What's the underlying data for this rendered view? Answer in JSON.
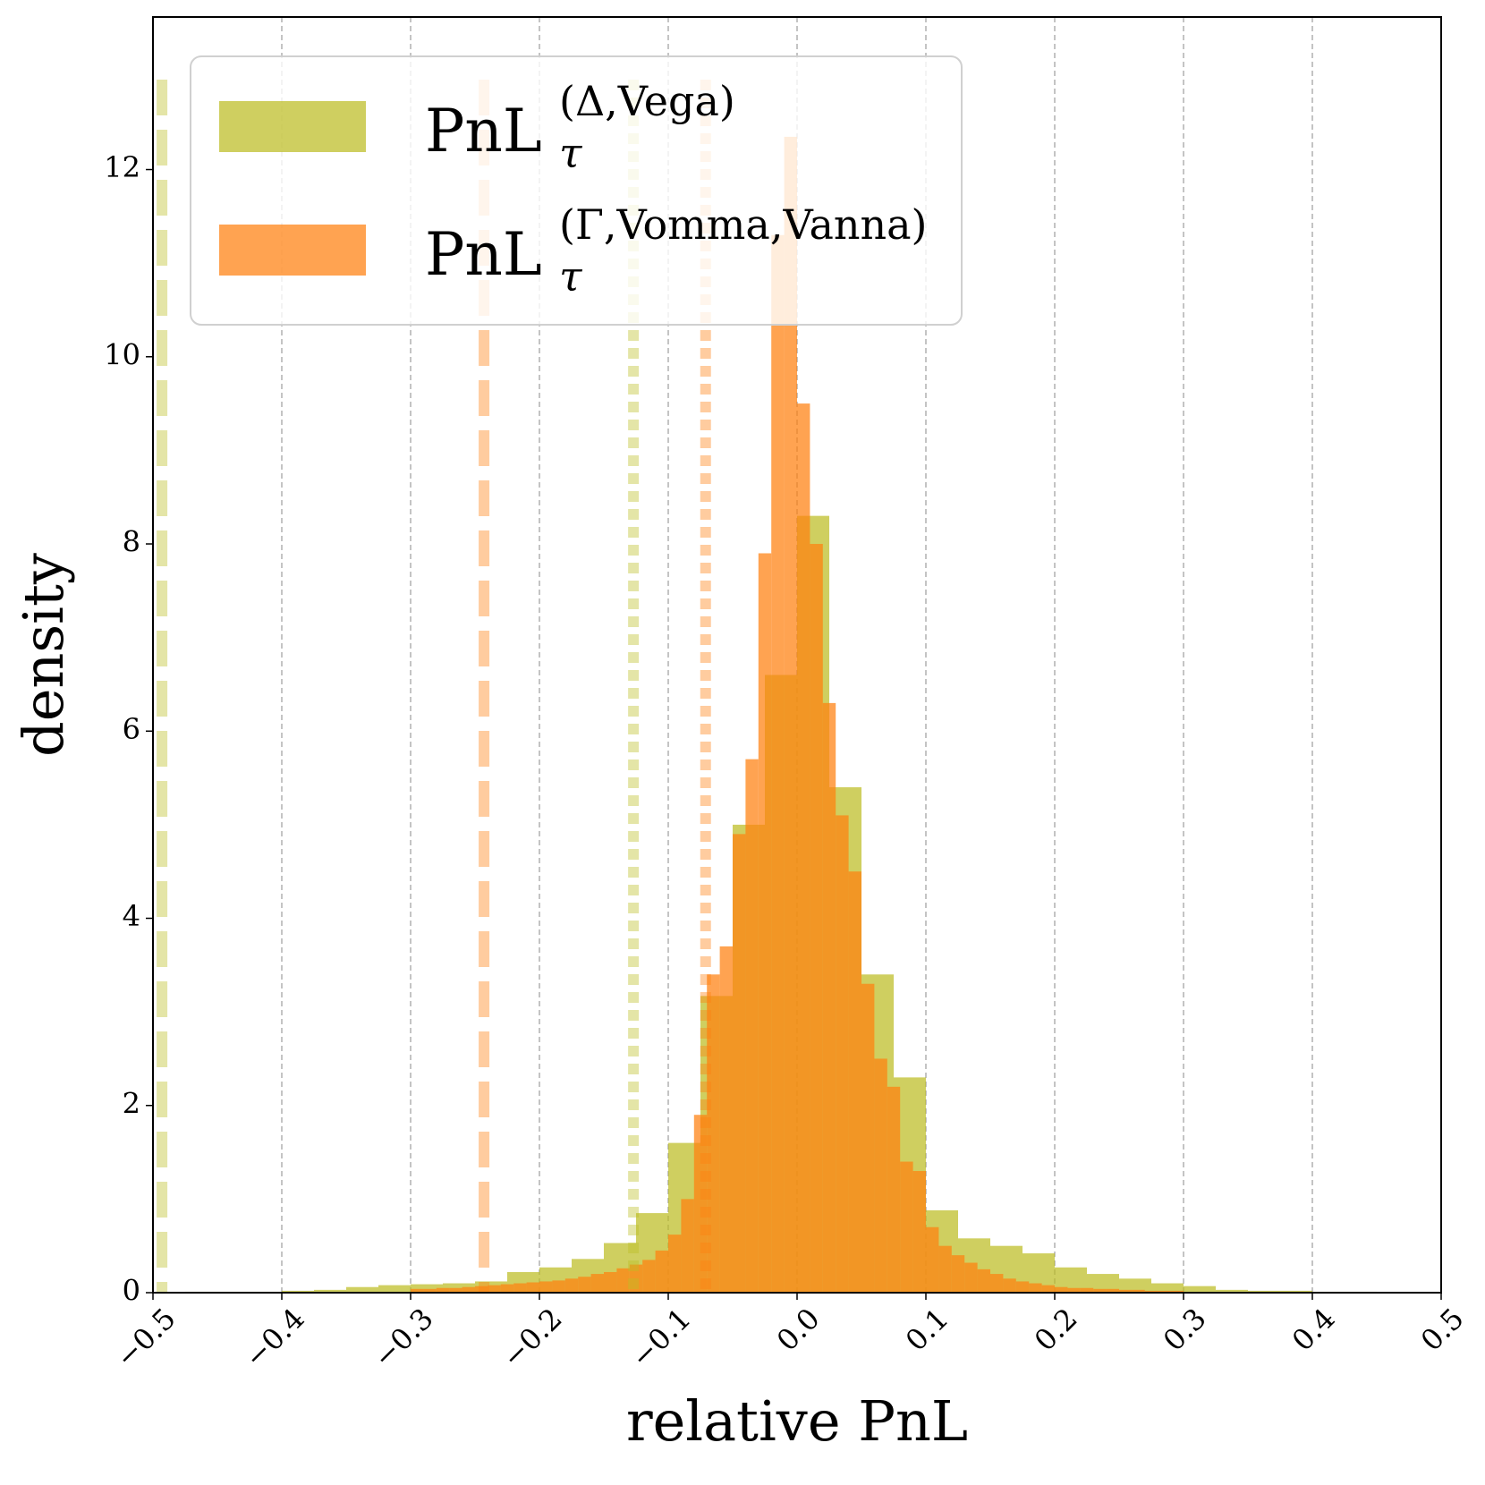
{
  "chart_data": {
    "type": "histogram",
    "xlabel": "relative PnL",
    "ylabel": "density",
    "xlim": [
      -0.5,
      0.5
    ],
    "ylim": [
      0,
      13.63
    ],
    "xticks": [
      {
        "value": -0.5,
        "label": "−0.5"
      },
      {
        "value": -0.4,
        "label": "−0.4"
      },
      {
        "value": -0.3,
        "label": "−0.3"
      },
      {
        "value": -0.2,
        "label": "−0.2"
      },
      {
        "value": -0.1,
        "label": "−0.1"
      },
      {
        "value": 0.0,
        "label": "0.0"
      },
      {
        "value": 0.1,
        "label": "0.1"
      },
      {
        "value": 0.2,
        "label": "0.2"
      },
      {
        "value": 0.3,
        "label": "0.3"
      },
      {
        "value": 0.4,
        "label": "0.4"
      },
      {
        "value": 0.5,
        "label": "0.5"
      }
    ],
    "yticks": [
      0,
      2,
      4,
      6,
      8,
      10,
      12
    ],
    "grid": "x",
    "legend": "upper left",
    "series": [
      {
        "name": "PnL",
        "name_sub": "τ",
        "name_sup": "(Δ,Vega)",
        "color": "#bcbd22",
        "bins": [
          -0.5,
          -0.475,
          -0.45,
          -0.425,
          -0.4,
          -0.375,
          -0.35,
          -0.325,
          -0.3,
          -0.275,
          -0.25,
          -0.225,
          -0.2,
          -0.175,
          -0.15,
          -0.125,
          -0.1,
          -0.075,
          -0.05,
          -0.025,
          0,
          0.025,
          0.05,
          0.075,
          0.1,
          0.125,
          0.15,
          0.175,
          0.2,
          0.225,
          0.25,
          0.275,
          0.3,
          0.325,
          0.35,
          0.375,
          0.4,
          0.425,
          0.45,
          0.475,
          0.5
        ],
        "values": [
          0.005,
          0.01,
          0.01,
          0.01,
          0.02,
          0.03,
          0.06,
          0.08,
          0.09,
          0.1,
          0.12,
          0.22,
          0.27,
          0.36,
          0.53,
          0.85,
          1.6,
          3.17,
          5.0,
          6.6,
          8.3,
          5.4,
          3.4,
          2.3,
          0.88,
          0.58,
          0.5,
          0.42,
          0.27,
          0.2,
          0.15,
          0.1,
          0.07,
          0.03,
          0.02,
          0.02,
          0.01,
          0.01,
          0.005,
          0
        ],
        "vlines": [
          {
            "x": -0.493,
            "style": "dashed"
          },
          {
            "x": -0.127,
            "style": "dotted"
          }
        ]
      },
      {
        "name": "PnL",
        "name_sub": "τ",
        "name_sup": "(Γ,Vomma,Vanna)",
        "color": "#ff7f0e",
        "bins": [
          -0.3,
          -0.29,
          -0.28,
          -0.27,
          -0.26,
          -0.25,
          -0.24,
          -0.23,
          -0.22,
          -0.21,
          -0.2,
          -0.19,
          -0.18,
          -0.17,
          -0.16,
          -0.15,
          -0.14,
          -0.13,
          -0.12,
          -0.11,
          -0.1,
          -0.09,
          -0.08,
          -0.07,
          -0.06,
          -0.05,
          -0.04,
          -0.03,
          -0.02,
          -0.01,
          0,
          0.01,
          0.02,
          0.03,
          0.04,
          0.05,
          0.06,
          0.07,
          0.08,
          0.09,
          0.1,
          0.11,
          0.12,
          0.13,
          0.14,
          0.15,
          0.16,
          0.17,
          0.18,
          0.19,
          0.2,
          0.21,
          0.22,
          0.23,
          0.24,
          0.25,
          0.26,
          0.27,
          0.28,
          0.29,
          0.3
        ],
        "values": [
          0.04,
          0.04,
          0.05,
          0.05,
          0.06,
          0.07,
          0.08,
          0.09,
          0.1,
          0.11,
          0.12,
          0.13,
          0.15,
          0.17,
          0.2,
          0.22,
          0.26,
          0.3,
          0.35,
          0.45,
          0.62,
          1.0,
          1.9,
          3.4,
          3.7,
          4.9,
          5.7,
          7.9,
          11.3,
          12.35,
          9.5,
          8.0,
          6.3,
          5.1,
          4.5,
          3.3,
          2.5,
          2.2,
          1.4,
          1.3,
          0.7,
          0.5,
          0.4,
          0.32,
          0.25,
          0.2,
          0.15,
          0.12,
          0.1,
          0.08,
          0.06,
          0.05,
          0.05,
          0.04,
          0.04,
          0.03,
          0.03,
          0.02,
          0.02,
          0.02
        ],
        "vlines": [
          {
            "x": -0.243,
            "style": "dashed"
          },
          {
            "x": -0.071,
            "style": "dotted"
          }
        ]
      }
    ]
  }
}
